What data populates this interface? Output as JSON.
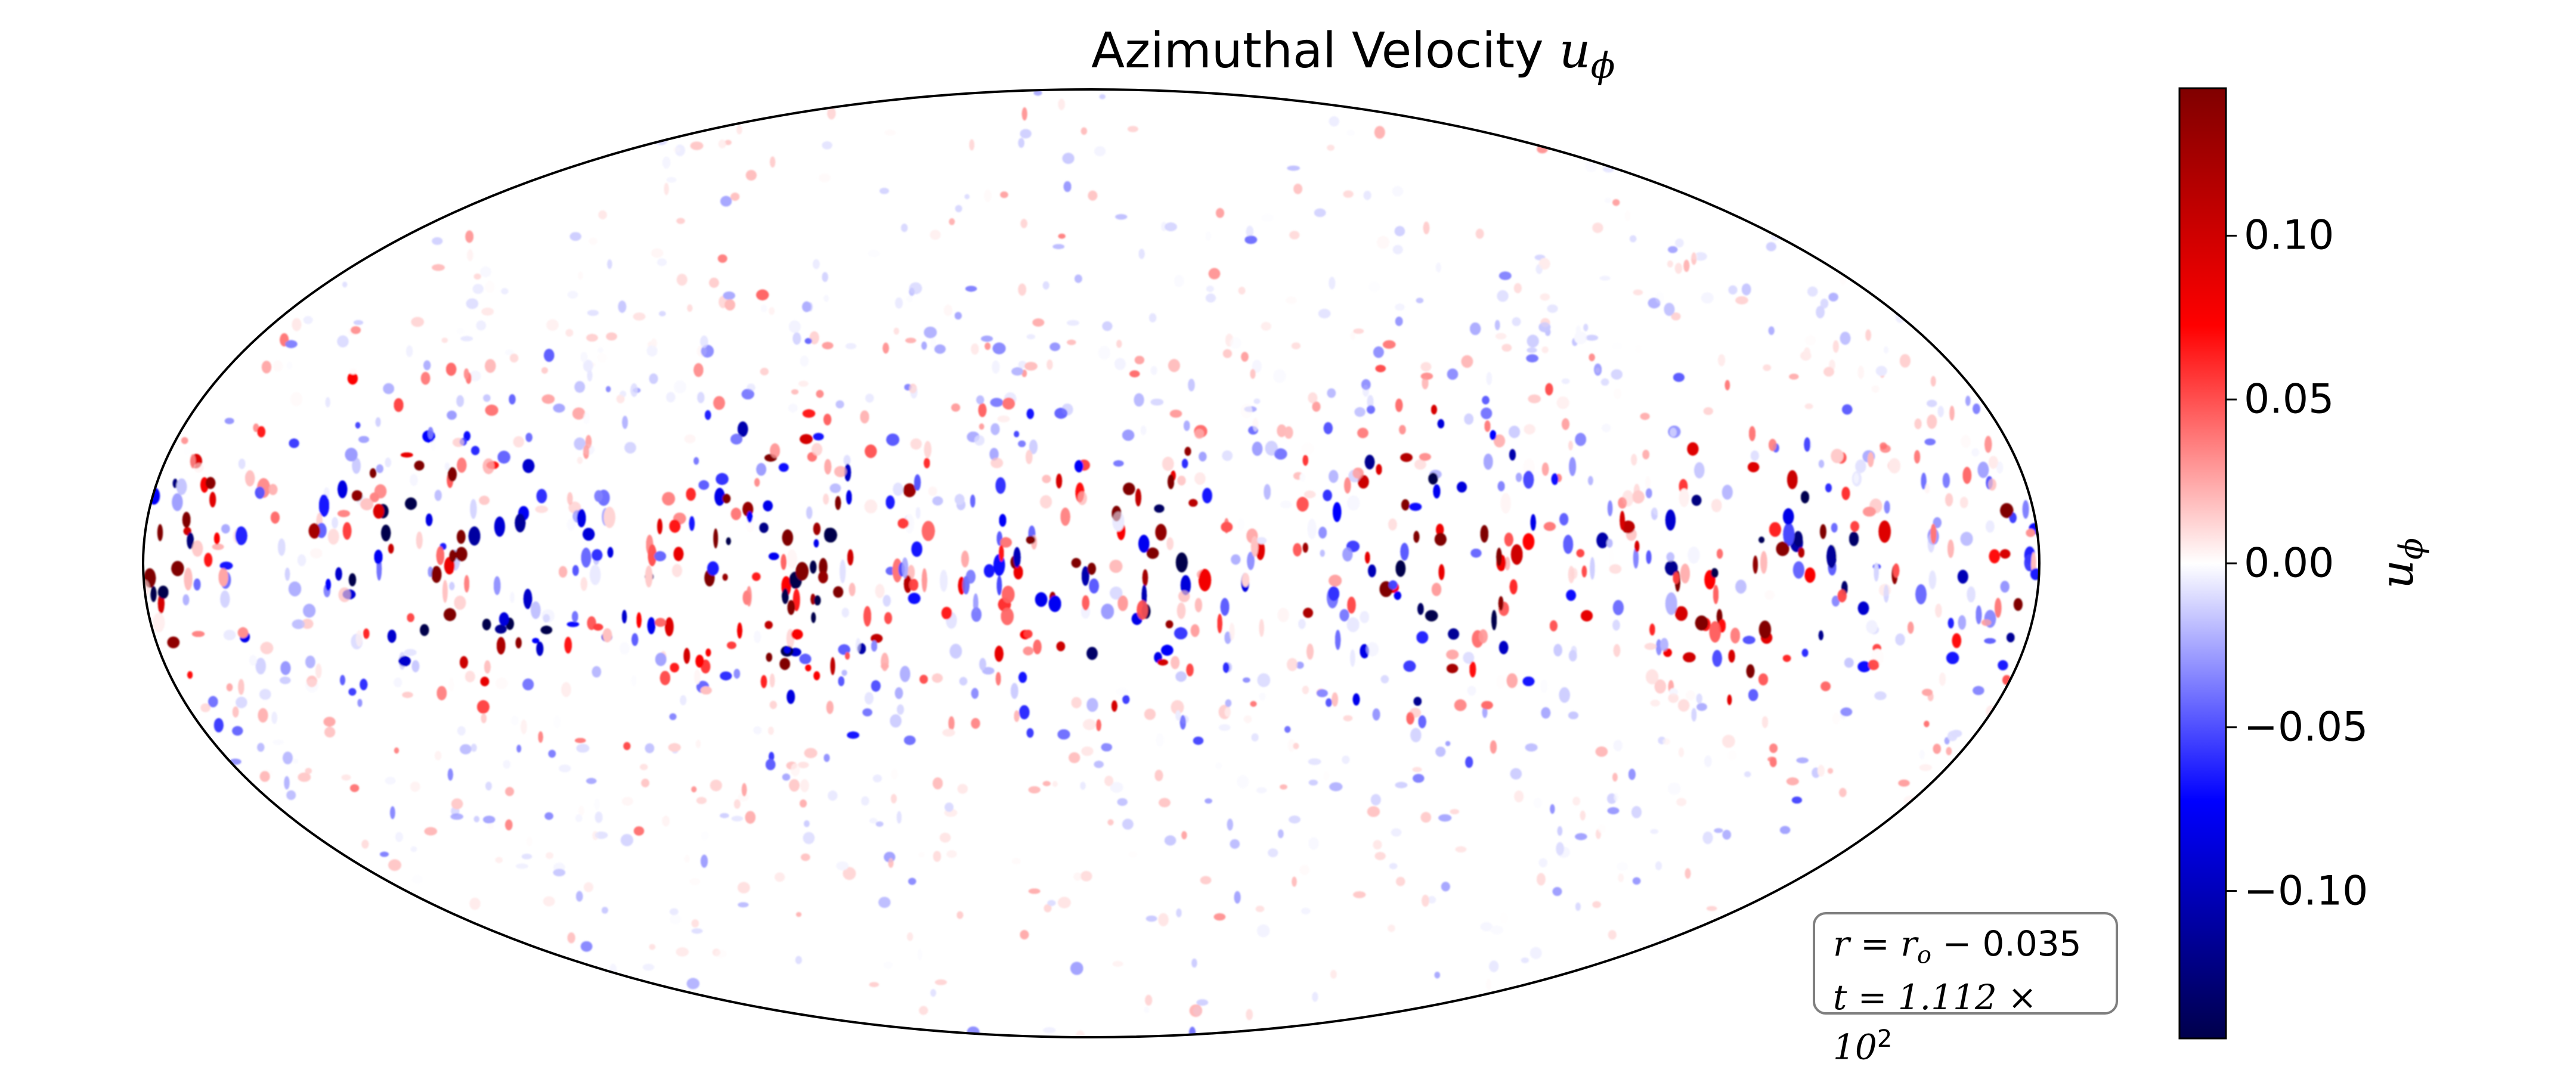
{
  "chart_data": {
    "type": "heatmap",
    "projection": "mollweide",
    "title": "Azimuthal Velocity",
    "title_symbol": "u",
    "title_symbol_sub": "ϕ",
    "colorbar": {
      "label": "u",
      "label_sub": "ϕ",
      "colormap": "seismic",
      "vmin": -0.145,
      "vmax": 0.145,
      "ticks": [
        0.1,
        0.05,
        0.0,
        -0.05,
        -0.1
      ],
      "tick_labels": [
        "0.10",
        "0.05",
        "0.00",
        "−0.05",
        "−0.10"
      ]
    },
    "annotation": {
      "line1_prefix": "r = r",
      "line1_sub": "o",
      "line1_suffix": " −  0.035",
      "line2_prefix": "t = 1.112 × 10",
      "line2_sup": "2"
    },
    "field_description_pattern": "turbulent small-scale red/blue structures concentrated in equatorial band, near zero at poles"
  },
  "colors": {
    "positive_max": "#800000",
    "positive": "#ff0000",
    "zero": "#ffffff",
    "negative": "#0000ff",
    "negative_max": "#00004c",
    "frame": "#000000",
    "annotation_border": "#7f7f7f"
  }
}
